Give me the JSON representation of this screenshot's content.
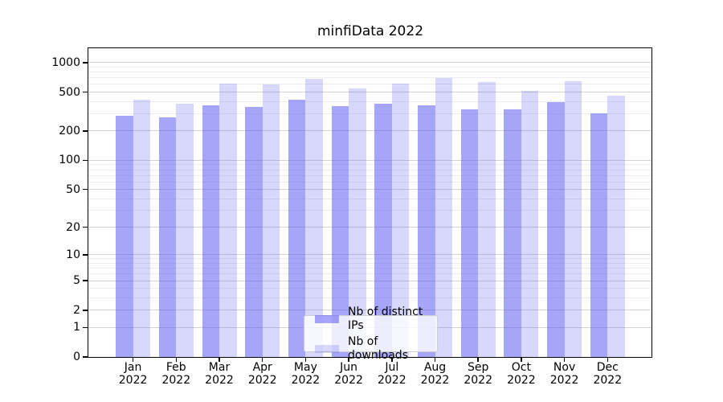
{
  "chart_data": {
    "type": "bar",
    "title": "minfiData 2022",
    "categories": [
      "Jan",
      "Feb",
      "Mar",
      "Apr",
      "May",
      "Jun",
      "Jul",
      "Aug",
      "Sep",
      "Oct",
      "Nov",
      "Dec"
    ],
    "x_tick_second_line": "2022",
    "series": [
      {
        "name": "Nb of distinct IPs",
        "color": "#a8a8f8",
        "base_color": "#5555f2",
        "fill_alpha": 0.52,
        "values": [
          285,
          273,
          363,
          352,
          415,
          359,
          382,
          363,
          330,
          330,
          396,
          303
        ]
      },
      {
        "name": "Nb of downloads",
        "color": "#d8d8f8",
        "base_color": "#5555f2",
        "fill_alpha": 0.23,
        "values": [
          418,
          377,
          615,
          595,
          677,
          541,
          607,
          690,
          636,
          516,
          648,
          455
        ]
      }
    ],
    "yscale": "log10(value+1)",
    "ylim": [
      0,
      1400
    ],
    "y_ticks": [
      1000,
      500,
      200,
      100,
      50,
      20,
      10,
      5,
      2,
      1,
      0
    ],
    "y_minor_gridlines": [
      3,
      4,
      6,
      7,
      8,
      9,
      30,
      40,
      60,
      70,
      80,
      90,
      300,
      400,
      600,
      700,
      800,
      900
    ],
    "grid": {
      "major_color": "#d3d3d3",
      "minor_color": "#ececec"
    },
    "axis_color": "#000000",
    "text_color": "#000000",
    "legend": {
      "position": "lower center",
      "entries": [
        "Nb of distinct IPs",
        "Nb of downloads"
      ]
    }
  }
}
